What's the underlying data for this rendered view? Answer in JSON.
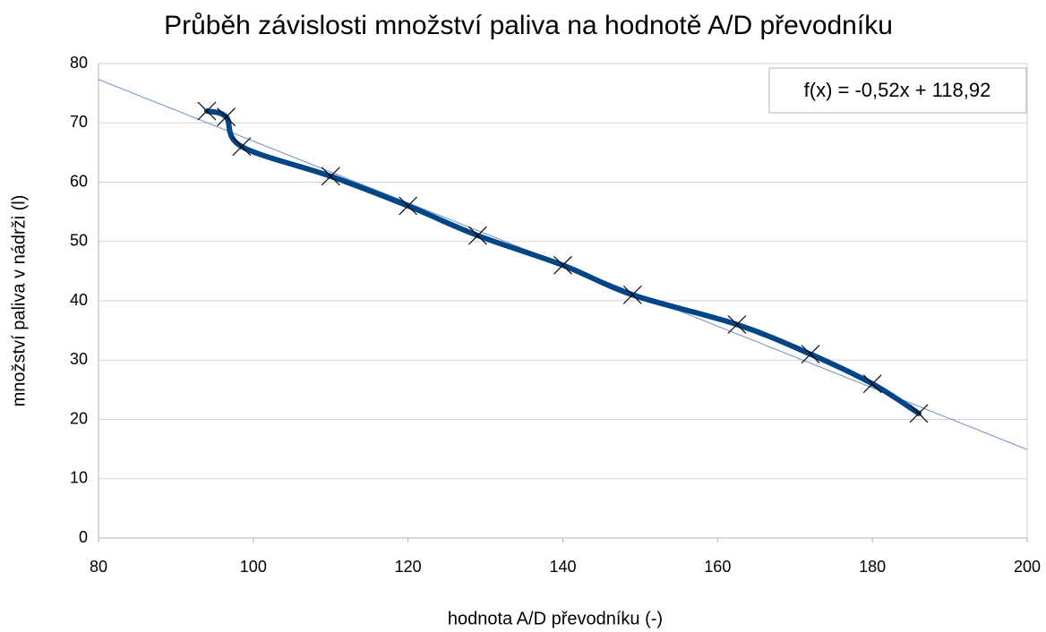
{
  "chart_data": {
    "type": "scatter",
    "title": "Průběh závislosti množství paliva na hodnotě A/D převodníku",
    "xlabel": "hodnota A/D převodníku (-)",
    "ylabel": "množství paliva v nádrži (l)",
    "series": [
      {
        "color": "#004586",
        "x": [
          94,
          96.5,
          98.5,
          110,
          120,
          129,
          140,
          149,
          162.5,
          172,
          180,
          186
        ],
        "y": [
          72,
          71,
          66,
          61,
          56,
          51,
          46,
          41,
          36,
          31,
          26,
          21
        ]
      }
    ],
    "trendline": {
      "label": "f(x) = -0,52x + 118,92",
      "slope": -0.52,
      "intercept": 118.92,
      "color": "#6f93c0"
    },
    "xlim": [
      80,
      200
    ],
    "xticks": [
      80,
      100,
      120,
      140,
      160,
      180,
      200
    ],
    "ylim": [
      0,
      80
    ],
    "yticks": [
      0,
      10,
      20,
      30,
      40,
      50,
      60,
      70,
      80
    ],
    "grid": true
  }
}
